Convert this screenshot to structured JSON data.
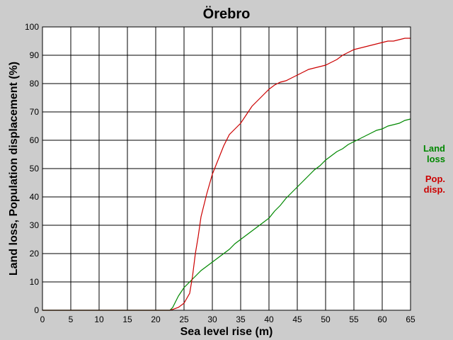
{
  "chart_data": {
    "type": "line",
    "title": "Örebro",
    "xlabel": "Sea level rise (m)",
    "ylabel": "Land loss, Population displacement (%)",
    "xlim": [
      0,
      65
    ],
    "ylim": [
      0,
      100
    ],
    "xticks": [
      0,
      5,
      10,
      15,
      20,
      25,
      30,
      35,
      40,
      45,
      50,
      55,
      60,
      65
    ],
    "yticks": [
      0,
      10,
      20,
      30,
      40,
      50,
      60,
      70,
      80,
      90,
      100
    ],
    "grid": true,
    "legend_position": "right",
    "series": [
      {
        "name": "Land loss",
        "legend_lines": [
          "Land",
          "loss"
        ],
        "color": "#008800",
        "x": [
          0,
          22.5,
          23,
          23.5,
          24,
          25,
          26,
          27,
          28,
          29,
          30,
          31,
          32,
          33,
          34,
          35,
          36,
          37,
          38,
          39,
          40,
          41,
          42,
          43,
          44,
          45,
          46,
          47,
          48,
          49,
          50,
          51,
          52,
          53,
          54,
          55,
          56,
          57,
          58,
          59,
          60,
          61,
          62,
          63,
          64,
          65
        ],
        "y": [
          0,
          0,
          1,
          3,
          5,
          8,
          10,
          12,
          14,
          15.5,
          17,
          18.5,
          20,
          21.5,
          23.5,
          25,
          26.5,
          28,
          29.5,
          31,
          32.5,
          35,
          37,
          39.5,
          41.5,
          43.5,
          45.5,
          47.5,
          49.5,
          51,
          53,
          54.5,
          56,
          57,
          58.5,
          59.5,
          60.5,
          61.5,
          62.5,
          63.5,
          64,
          65,
          65.5,
          66,
          67,
          67.5
        ]
      },
      {
        "name": "Pop. disp.",
        "legend_lines": [
          "Pop.",
          "disp."
        ],
        "color": "#cc0000",
        "x": [
          0,
          22.5,
          23,
          24,
          25,
          26,
          26.5,
          27,
          27.5,
          28,
          29,
          30,
          31,
          32,
          33,
          34,
          35,
          36,
          37,
          38,
          39,
          40,
          41,
          42,
          43,
          44,
          45,
          46,
          47,
          48,
          49,
          50,
          51,
          52,
          53,
          54,
          55,
          56,
          57,
          58,
          59,
          60,
          61,
          62,
          63,
          64,
          65
        ],
        "y": [
          0,
          0,
          0.3,
          1,
          2.5,
          6,
          12,
          20,
          26,
          33,
          41,
          48,
          53,
          58,
          62,
          64,
          66,
          69,
          72,
          74,
          76,
          78,
          79.5,
          80.5,
          81,
          82,
          83,
          84,
          85,
          85.5,
          86,
          86.5,
          87.5,
          88.5,
          90,
          91,
          92,
          92.5,
          93,
          93.5,
          94,
          94.5,
          95,
          95,
          95.5,
          96,
          96
        ]
      }
    ]
  }
}
